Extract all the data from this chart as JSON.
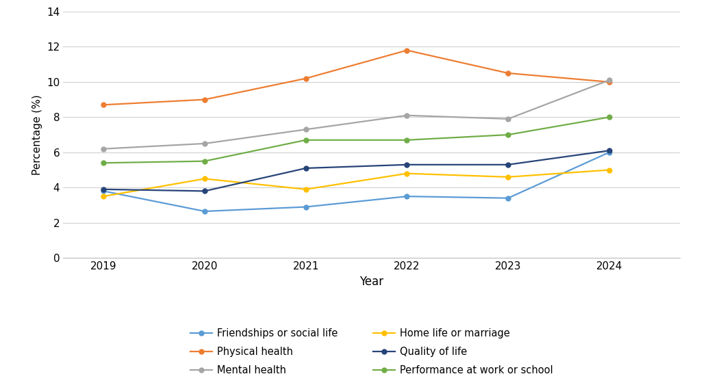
{
  "years": [
    2019,
    2020,
    2021,
    2022,
    2023,
    2024
  ],
  "series": [
    {
      "label": "Friendships or social life",
      "values": [
        3.8,
        2.65,
        2.9,
        3.5,
        3.4,
        6.0
      ],
      "color": "#5B9BD5",
      "marker": "o"
    },
    {
      "label": "Physical health",
      "values": [
        8.7,
        9.0,
        10.2,
        11.8,
        10.5,
        10.0
      ],
      "color": "#ED7D31",
      "marker": "o"
    },
    {
      "label": "Mental health",
      "values": [
        6.2,
        6.5,
        7.3,
        8.1,
        7.9,
        10.1
      ],
      "color": "#A5A5A5",
      "marker": "o"
    },
    {
      "label": "Home life or marriage",
      "values": [
        3.5,
        4.5,
        3.9,
        4.8,
        4.6,
        5.0
      ],
      "color": "#FFC000",
      "marker": "o"
    },
    {
      "label": "Quality of life",
      "values": [
        3.9,
        3.8,
        5.1,
        5.3,
        5.3,
        6.1
      ],
      "color": "#264478",
      "marker": "o"
    },
    {
      "label": "Performance at work or school",
      "values": [
        5.4,
        5.5,
        6.7,
        6.7,
        7.0,
        8.0
      ],
      "color": "#70AD47",
      "marker": "o"
    }
  ],
  "xlabel": "Year",
  "ylabel": "Percentage (%)",
  "ylim": [
    0,
    14
  ],
  "yticks": [
    0,
    2,
    4,
    6,
    8,
    10,
    12,
    14
  ],
  "background_color": "#ffffff",
  "grid_color": "#d0d0d0",
  "legend_ncol": 2,
  "legend_order": [
    0,
    1,
    2,
    3,
    4,
    5
  ],
  "figsize": [
    10.24,
    5.63
  ],
  "dpi": 100
}
